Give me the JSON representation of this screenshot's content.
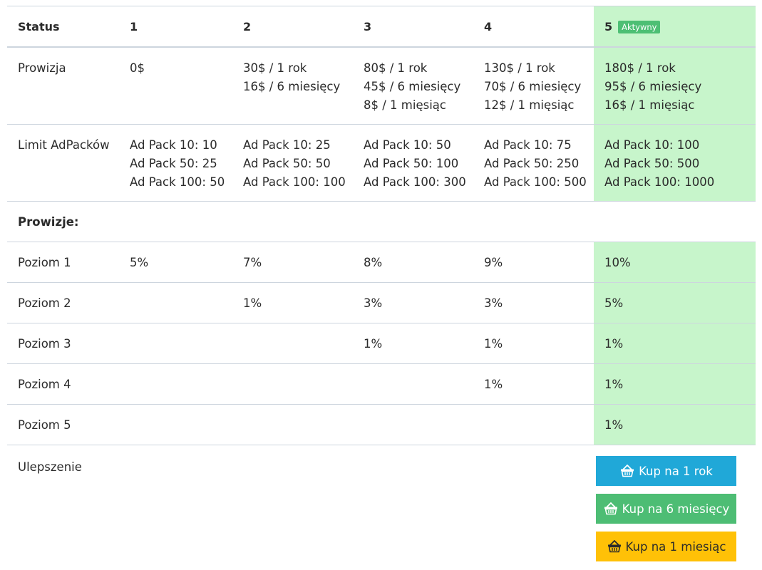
{
  "header": {
    "status_label": "Status",
    "levels": [
      "1",
      "2",
      "3",
      "4",
      "5"
    ],
    "active_badge": "Aktywny"
  },
  "prowizja": {
    "label": "Prowizja",
    "cols": [
      [
        "0$"
      ],
      [
        "30$ / 1 rok",
        "16$ / 6 miesięcy"
      ],
      [
        "80$ / 1 rok",
        "45$ / 6 miesięcy",
        "8$ / 1 mięsiąc"
      ],
      [
        "130$ / 1 rok",
        "70$ / 6 miesięcy",
        "12$ / 1 mięsiąc"
      ],
      [
        "180$ / 1 rok",
        "95$ / 6 miesięcy",
        "16$ / 1 mięsiąc"
      ]
    ]
  },
  "limit": {
    "label": "Limit AdPacków",
    "cols": [
      [
        "Ad Pack 10: 10",
        "Ad Pack 50: 25",
        "Ad Pack 100: 50"
      ],
      [
        "Ad Pack 10: 25",
        "Ad Pack 50: 50",
        "Ad Pack 100: 100"
      ],
      [
        "Ad Pack 10: 50",
        "Ad Pack 50: 100",
        "Ad Pack 100: 300"
      ],
      [
        "Ad Pack 10: 75",
        "Ad Pack 50: 250",
        "Ad Pack 100: 500"
      ],
      [
        "Ad Pack 10: 100",
        "Ad Pack 50: 500",
        "Ad Pack 100: 1000"
      ]
    ]
  },
  "prowizje_heading": "Prowizje:",
  "poziomy": [
    {
      "label": "Poziom 1",
      "values": [
        "5%",
        "7%",
        "8%",
        "9%",
        "10%"
      ]
    },
    {
      "label": "Poziom 2",
      "values": [
        "",
        "1%",
        "3%",
        "3%",
        "5%"
      ]
    },
    {
      "label": "Poziom 3",
      "values": [
        "",
        "",
        "1%",
        "1%",
        "1%"
      ]
    },
    {
      "label": "Poziom 4",
      "values": [
        "",
        "",
        "",
        "1%",
        "1%"
      ]
    },
    {
      "label": "Poziom 5",
      "values": [
        "",
        "",
        "",
        "",
        "1%"
      ]
    }
  ],
  "upgrade": {
    "label": "Ulepszenie",
    "buttons": [
      {
        "label": "Kup na 1 rok",
        "icon": "basket-icon",
        "color": "#20a8d8"
      },
      {
        "label": "Kup na 6 miesięcy",
        "icon": "basket-icon",
        "color": "#4dbd74"
      },
      {
        "label": "Kup na 1 miesiąc",
        "icon": "basket-icon",
        "color": "#ffc107"
      }
    ]
  },
  "colors": {
    "active_column": "#c7f5cb",
    "badge": "#4dbf74",
    "border": "#cdd5de"
  }
}
